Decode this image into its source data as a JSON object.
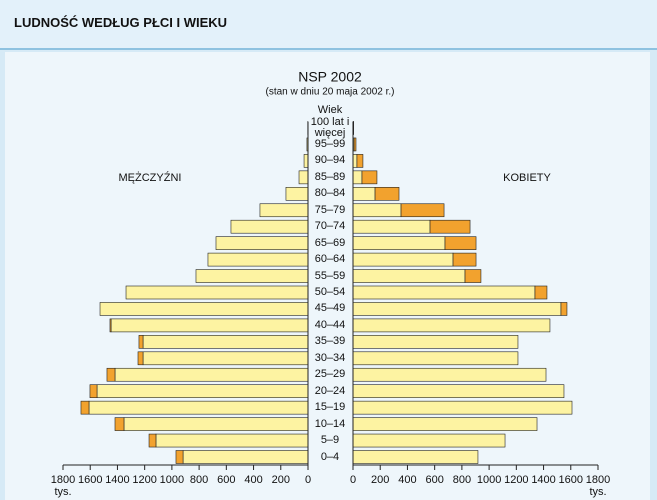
{
  "header": {
    "title": "LUDNOŚĆ WEDŁUG PŁCI I WIEKU"
  },
  "chart_data": {
    "type": "pyramid",
    "title": "NSP 2002",
    "subtitle": "(stan w dniu 20 maja 2002 r.)",
    "category_axis_label": "Wiek",
    "unit_label": "tys.",
    "categories": [
      "0–4",
      "5–9",
      "10–14",
      "15–19",
      "20–24",
      "25–29",
      "30–34",
      "35–39",
      "40–44",
      "45–49",
      "50–54",
      "55–59",
      "60–64",
      "65–69",
      "70–74",
      "75–79",
      "80–84",
      "85–89",
      "90–94",
      "95–99",
      "100 lat i więcej"
    ],
    "color": "#fdf3a2",
    "excess_color": "#f2a22e",
    "xlim": [
      0,
      1800
    ],
    "xticks": [
      0,
      200,
      400,
      600,
      800,
      1000,
      1200,
      1400,
      1600,
      1800
    ],
    "series": [
      {
        "name": "MĘŻCZYŹNI",
        "side": "left",
        "values": [
          970,
          1168,
          1418,
          1668,
          1602,
          1477,
          1249,
          1242,
          1455,
          1528,
          1337,
          823,
          735,
          676,
          566,
          353,
          162,
          66,
          29,
          8,
          2
        ]
      },
      {
        "name": "KOBIETY",
        "side": "right",
        "values": [
          918,
          1117,
          1352,
          1609,
          1550,
          1418,
          1212,
          1212,
          1447,
          1572,
          1425,
          940,
          904,
          904,
          860,
          669,
          338,
          176,
          73,
          22,
          5
        ]
      }
    ]
  }
}
